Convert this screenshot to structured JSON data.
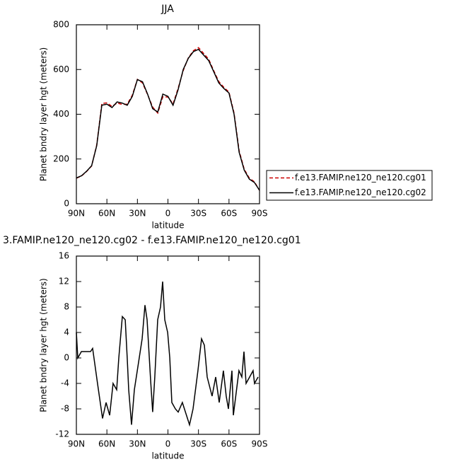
{
  "chart_data": [
    {
      "type": "line",
      "title": "JJA",
      "xlabel": "latitude",
      "ylabel": "Planet bndry layer hgt (meters)",
      "x": [
        90,
        85,
        80,
        75,
        70,
        65,
        60,
        55,
        50,
        45,
        40,
        35,
        30,
        25,
        20,
        15,
        10,
        5,
        0,
        -5,
        -10,
        -15,
        -20,
        -25,
        -30,
        -35,
        -40,
        -45,
        -50,
        -55,
        -60,
        -65,
        -70,
        -75,
        -80,
        -85,
        -90
      ],
      "series": [
        {
          "name": "f.e13.FAMIP.ne120_ne120.cg01",
          "color": "#cc0000",
          "dash": true,
          "values": [
            114,
            124,
            144,
            169,
            263,
            448,
            451,
            435,
            450,
            444,
            445,
            485,
            556,
            540,
            488,
            432,
            405,
            478,
            477,
            446,
            516,
            595,
            652,
            684,
            698,
            672,
            646,
            594,
            546,
            520,
            499,
            405,
            236,
            154,
            114,
            98,
            59
          ]
        },
        {
          "name": "f.e13.FAMIP.ne120_ne120.cg02",
          "color": "#000000",
          "dash": false,
          "values": [
            115,
            125,
            145,
            170,
            260,
            440,
            445,
            430,
            455,
            450,
            440,
            480,
            555,
            545,
            490,
            425,
            410,
            490,
            480,
            440,
            510,
            600,
            650,
            680,
            690,
            665,
            640,
            590,
            540,
            515,
            495,
            400,
            230,
            150,
            110,
            95,
            60
          ]
        }
      ],
      "xlim": [
        90,
        -90
      ],
      "xticks": [
        {
          "value": 90,
          "label": "90N"
        },
        {
          "value": 60,
          "label": "60N"
        },
        {
          "value": 30,
          "label": "30N"
        },
        0,
        {
          "value": -30,
          "label": "30S"
        },
        {
          "value": -60,
          "label": "60S"
        },
        {
          "value": -90,
          "label": "90S"
        }
      ],
      "ylim": [
        0,
        800
      ],
      "yticks": [
        0,
        200,
        400,
        600,
        800
      ],
      "legend": "right"
    },
    {
      "type": "line",
      "title": "3.FAMIP.ne120_ne120.cg02 - f.e13.FAMIP.ne120_ne120.cg01",
      "xlabel": "latitude",
      "ylabel": "Planet bndry layer hgt (meters)",
      "x": [
        90,
        88.6,
        85.1,
        80.3,
        76.1,
        74.0,
        69.2,
        64.3,
        60.8,
        57.3,
        53.9,
        50.4,
        48.3,
        44.8,
        42.0,
        40.0,
        38.6,
        35.8,
        33.0,
        28.2,
        25.4,
        22.6,
        20.5,
        17.0,
        15.0,
        12.9,
        10.1,
        7.3,
        5.2,
        3.1,
        0.3,
        -1.8,
        -3.8,
        -7.3,
        -10.1,
        -14.2,
        -21.2,
        -24.7,
        -29.5,
        -33.0,
        -35.8,
        -38.6,
        -43.4,
        -46.9,
        -50.4,
        -54.5,
        -57.3,
        -59.4,
        -62.9,
        -64.3,
        -69.8,
        -72.6,
        -74.7,
        -76.8,
        -80.3,
        -83.7,
        -85.1,
        -88.6
      ],
      "series": [
        {
          "color": "#000000",
          "dash": false,
          "values": [
            4,
            0,
            1,
            1,
            1,
            1.5,
            -4,
            -9.5,
            -7,
            -9,
            -4,
            -5,
            0,
            6.5,
            6,
            0,
            -5,
            -10.5,
            -5,
            0,
            3,
            8.3,
            6,
            -3.5,
            -8.5,
            -3,
            6,
            8,
            12,
            6,
            4,
            0,
            -7,
            -8,
            -8.5,
            -7,
            -10.5,
            -8,
            -2,
            3,
            2,
            -3,
            -6,
            -3,
            -7,
            -2,
            -6,
            -8,
            -2,
            -9,
            -2,
            -3,
            1,
            -4,
            -3,
            -2,
            -4,
            -3
          ]
        }
      ],
      "xlim": [
        90,
        -90
      ],
      "xticks": [
        {
          "value": 90,
          "label": "90N"
        },
        {
          "value": 60,
          "label": "60N"
        },
        {
          "value": 30,
          "label": "30N"
        },
        0,
        {
          "value": -30,
          "label": "30S"
        },
        {
          "value": -60,
          "label": "60S"
        },
        {
          "value": -90,
          "label": "90S"
        }
      ],
      "ylim": [
        -12,
        16
      ],
      "yticks": [
        -12,
        -8,
        -4,
        0,
        4,
        8,
        12,
        16
      ]
    }
  ]
}
